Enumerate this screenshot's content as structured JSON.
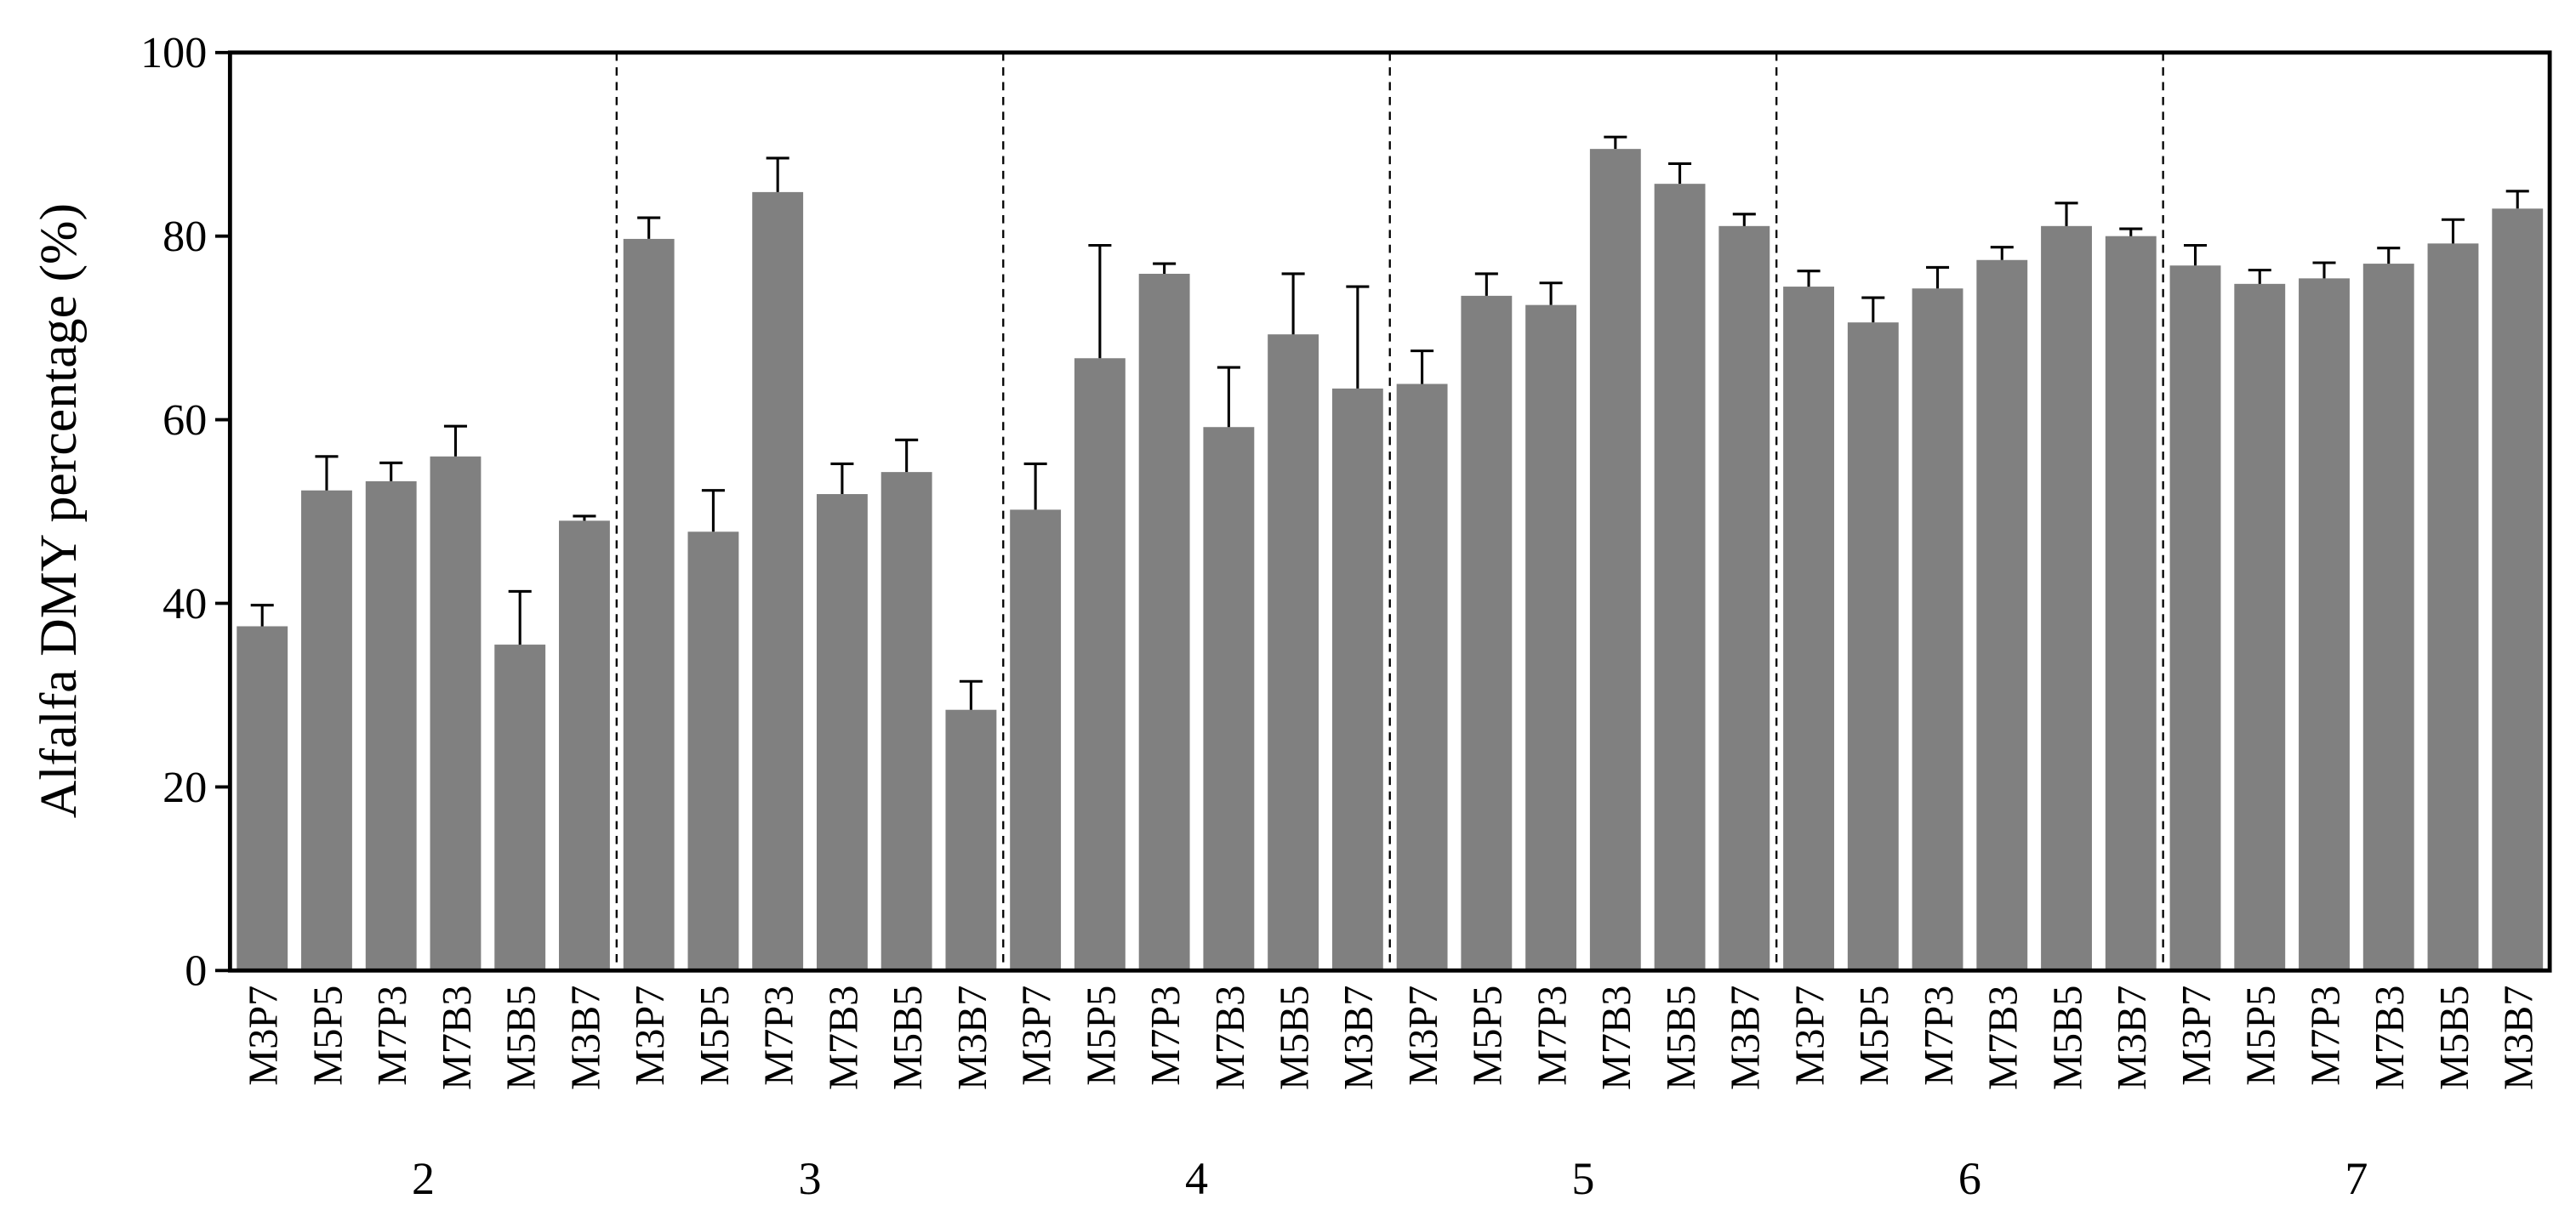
{
  "chart_data": {
    "type": "bar",
    "y_label": "Alfalfa DMY percentage (%)",
    "categories": [
      "M3P7",
      "M5P5",
      "M7P3",
      "M7B3",
      "M5B5",
      "M3B7",
      "M3P7",
      "M5P5",
      "M7P3",
      "M7B3",
      "M5B5",
      "M3B7",
      "M3P7",
      "M5P5",
      "M7P3",
      "M7B3",
      "M5B5",
      "M3B7",
      "M3P7",
      "M5P5",
      "M7P3",
      "M7B3",
      "M5B5",
      "M3B7",
      "M3P7",
      "M5P5",
      "M7P3",
      "M7B3",
      "M5B5",
      "M3B7",
      "M3P7",
      "M5P5",
      "M7P3",
      "M7B3",
      "M5B5",
      "M3B7"
    ],
    "groups": [
      "2",
      "3",
      "4",
      "5",
      "6",
      "7"
    ],
    "values": [
      37.5,
      52.3,
      53.3,
      56,
      35.5,
      49,
      79.7,
      47.8,
      84.8,
      51.9,
      54.3,
      28.4,
      50.2,
      66.7,
      75.9,
      59.2,
      69.3,
      63.4,
      63.9,
      73.5,
      72.5,
      89.5,
      85.7,
      81.1,
      74.5,
      70.6,
      74.3,
      77.4,
      81.1,
      80,
      76.8,
      74.8,
      75.4,
      77,
      79.2,
      83
    ],
    "errors": [
      2.3,
      3.7,
      2.0,
      3.3,
      5.8,
      0.5,
      2.3,
      4.5,
      3.7,
      3.3,
      3.5,
      3.1,
      5.0,
      12.3,
      1.1,
      6.5,
      6.6,
      11.1,
      3.6,
      2.4,
      2.4,
      1.3,
      2.2,
      1.3,
      1.7,
      2.7,
      2.3,
      1.4,
      2.5,
      0.8,
      2.2,
      1.5,
      1.7,
      1.7,
      2.6,
      1.9
    ],
    "color": "#808080",
    "ylim": [
      0,
      100
    ],
    "yticks": [
      0,
      20,
      40,
      60,
      80,
      100
    ]
  }
}
